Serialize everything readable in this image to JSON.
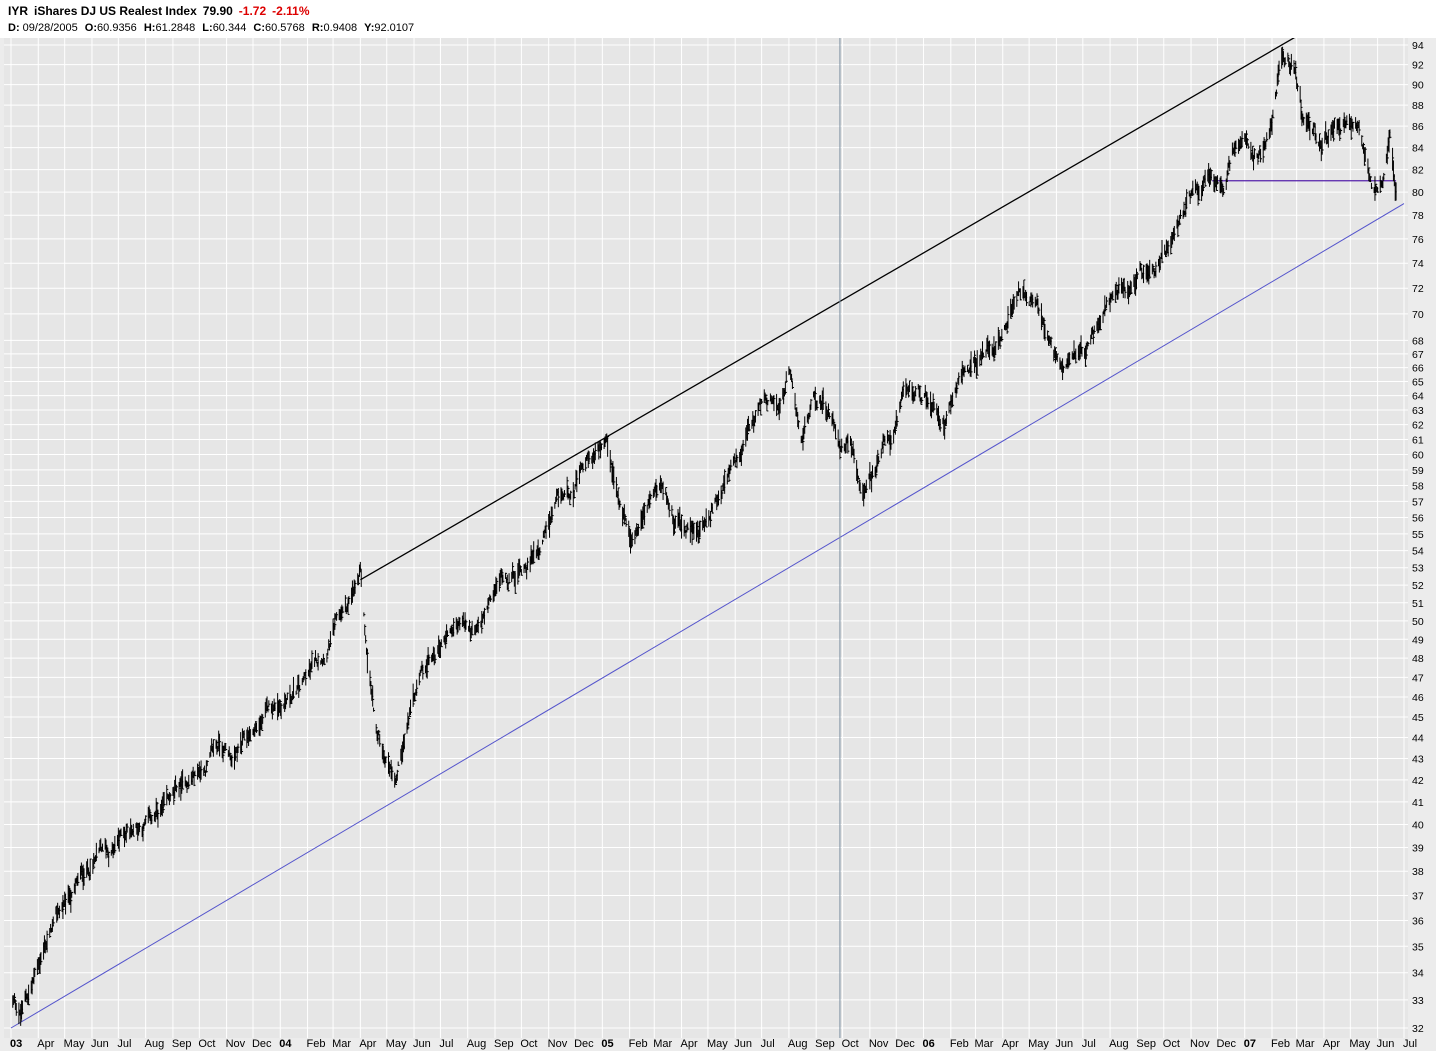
{
  "header": {
    "symbol": "IYR",
    "name": "iShares DJ US Realest Index",
    "last": "79.90",
    "change": "-1.72",
    "change_pct": "-2.11%",
    "d_label": "D:",
    "d_value": "09/28/2005",
    "o_label": "O:",
    "o_value": "60.9356",
    "h_label": "H:",
    "h_value": "61.2848",
    "l_label": "L:",
    "l_value": "60.344",
    "c_label": "C:",
    "c_value": "60.5768",
    "r_label": "R:",
    "r_value": "0.9408",
    "y_label": "Y:",
    "y_value": "92.0107"
  },
  "colors": {
    "background": "#e6e6e6",
    "grid": "#ffffff",
    "bars": "#000000",
    "upper_trendline": "#000000",
    "lower_trendline": "#5555cc",
    "support_line": "#5522aa",
    "cursor_line": "#7a8fa0",
    "negative_change": "#dd0000"
  },
  "chart_data": {
    "type": "line",
    "scale": "log",
    "grid": true,
    "ylim": [
      32,
      94
    ],
    "yticks": [
      32,
      33,
      34,
      35,
      36,
      37,
      38,
      39,
      40,
      41,
      42,
      43,
      44,
      45,
      46,
      47,
      48,
      49,
      50,
      51,
      52,
      53,
      54,
      55,
      56,
      57,
      58,
      59,
      60,
      61,
      62,
      63,
      64,
      65,
      66,
      67,
      68,
      70,
      72,
      74,
      76,
      78,
      80,
      82,
      84,
      86,
      88,
      90,
      92,
      94
    ],
    "xticks": [
      {
        "label": "03",
        "year": true,
        "date": "2003-03-01"
      },
      {
        "label": "Apr",
        "date": "2003-04-01"
      },
      {
        "label": "May",
        "date": "2003-05-01"
      },
      {
        "label": "Jun",
        "date": "2003-06-01"
      },
      {
        "label": "Jul",
        "date": "2003-07-01"
      },
      {
        "label": "Aug",
        "date": "2003-08-01"
      },
      {
        "label": "Sep",
        "date": "2003-09-01"
      },
      {
        "label": "Oct",
        "date": "2003-10-01"
      },
      {
        "label": "Nov",
        "date": "2003-11-01"
      },
      {
        "label": "Dec",
        "date": "2003-12-01"
      },
      {
        "label": "04",
        "year": true,
        "date": "2004-01-01"
      },
      {
        "label": "Feb",
        "date": "2004-02-01"
      },
      {
        "label": "Mar",
        "date": "2004-03-01"
      },
      {
        "label": "Apr",
        "date": "2004-04-01"
      },
      {
        "label": "May",
        "date": "2004-05-01"
      },
      {
        "label": "Jun",
        "date": "2004-06-01"
      },
      {
        "label": "Jul",
        "date": "2004-07-01"
      },
      {
        "label": "Aug",
        "date": "2004-08-01"
      },
      {
        "label": "Sep",
        "date": "2004-09-01"
      },
      {
        "label": "Oct",
        "date": "2004-10-01"
      },
      {
        "label": "Nov",
        "date": "2004-11-01"
      },
      {
        "label": "Dec",
        "date": "2004-12-01"
      },
      {
        "label": "05",
        "year": true,
        "date": "2005-01-01"
      },
      {
        "label": "Feb",
        "date": "2005-02-01"
      },
      {
        "label": "Mar",
        "date": "2005-03-01"
      },
      {
        "label": "Apr",
        "date": "2005-04-01"
      },
      {
        "label": "May",
        "date": "2005-05-01"
      },
      {
        "label": "Jun",
        "date": "2005-06-01"
      },
      {
        "label": "Jul",
        "date": "2005-07-01"
      },
      {
        "label": "Aug",
        "date": "2005-08-01"
      },
      {
        "label": "Sep",
        "date": "2005-09-01"
      },
      {
        "label": "Oct",
        "date": "2005-10-01"
      },
      {
        "label": "Nov",
        "date": "2005-11-01"
      },
      {
        "label": "Dec",
        "date": "2005-12-01"
      },
      {
        "label": "06",
        "year": true,
        "date": "2006-01-01"
      },
      {
        "label": "Feb",
        "date": "2006-02-01"
      },
      {
        "label": "Mar",
        "date": "2006-03-01"
      },
      {
        "label": "Apr",
        "date": "2006-04-01"
      },
      {
        "label": "May",
        "date": "2006-05-01"
      },
      {
        "label": "Jun",
        "date": "2006-06-01"
      },
      {
        "label": "Jul",
        "date": "2006-07-01"
      },
      {
        "label": "Aug",
        "date": "2006-08-01"
      },
      {
        "label": "Sep",
        "date": "2006-09-01"
      },
      {
        "label": "Oct",
        "date": "2006-10-01"
      },
      {
        "label": "Nov",
        "date": "2006-11-01"
      },
      {
        "label": "Dec",
        "date": "2006-12-01"
      },
      {
        "label": "07",
        "year": true,
        "date": "2007-01-01"
      },
      {
        "label": "Feb",
        "date": "2007-02-01"
      },
      {
        "label": "Mar",
        "date": "2007-03-01"
      },
      {
        "label": "Apr",
        "date": "2007-04-01"
      },
      {
        "label": "May",
        "date": "2007-05-01"
      },
      {
        "label": "Jun",
        "date": "2007-06-01"
      },
      {
        "label": "Jul",
        "date": "2007-07-01"
      }
    ],
    "series": [
      {
        "x": [
          "2003-03-01",
          "2003-03-12",
          "2003-03-25",
          "2003-04-10",
          "2003-04-25",
          "2003-05-10",
          "2003-05-25",
          "2003-06-10",
          "2003-06-25",
          "2003-07-10",
          "2003-07-25",
          "2003-08-10",
          "2003-08-25",
          "2003-09-10",
          "2003-09-25",
          "2003-10-10",
          "2003-10-25",
          "2003-11-10",
          "2003-11-25",
          "2003-12-10",
          "2003-12-25",
          "2004-01-10",
          "2004-01-25",
          "2004-02-10",
          "2004-02-25",
          "2004-03-10",
          "2004-03-25",
          "2004-04-01",
          "2004-04-08",
          "2004-04-20",
          "2004-05-01",
          "2004-05-12",
          "2004-05-25",
          "2004-06-10",
          "2004-06-25",
          "2004-07-10",
          "2004-07-25",
          "2004-08-10",
          "2004-08-25",
          "2004-09-10",
          "2004-09-25",
          "2004-10-10",
          "2004-10-25",
          "2004-11-10",
          "2004-11-25",
          "2004-12-10",
          "2004-12-25",
          "2005-01-05",
          "2005-01-20",
          "2005-02-05",
          "2005-02-20",
          "2005-03-05",
          "2005-03-20",
          "2005-04-05",
          "2005-04-20",
          "2005-05-05",
          "2005-05-20",
          "2005-06-05",
          "2005-06-20",
          "2005-07-05",
          "2005-07-20",
          "2005-08-01",
          "2005-08-15",
          "2005-08-28",
          "2005-09-10",
          "2005-09-28",
          "2005-10-10",
          "2005-10-25",
          "2005-11-10",
          "2005-11-25",
          "2005-12-10",
          "2005-12-25",
          "2006-01-10",
          "2006-01-25",
          "2006-02-10",
          "2006-02-25",
          "2006-03-10",
          "2006-03-25",
          "2006-04-10",
          "2006-04-25",
          "2006-05-10",
          "2006-05-25",
          "2006-06-05",
          "2006-06-20",
          "2006-07-05",
          "2006-07-20",
          "2006-08-05",
          "2006-08-20",
          "2006-09-05",
          "2006-09-20",
          "2006-10-05",
          "2006-10-20",
          "2006-11-05",
          "2006-11-20",
          "2006-12-05",
          "2006-12-20",
          "2007-01-05",
          "2007-01-20",
          "2007-02-01",
          "2007-02-10",
          "2007-02-25",
          "2007-03-10",
          "2007-03-25",
          "2007-04-10",
          "2007-04-25",
          "2007-05-10",
          "2007-05-25",
          "2007-06-05",
          "2007-06-15",
          "2007-06-22"
        ],
        "values": [
          33.0,
          32.5,
          33.6,
          35.2,
          36.3,
          37.0,
          38.0,
          38.6,
          38.8,
          39.8,
          40.0,
          40.3,
          40.6,
          41.5,
          42.2,
          42.8,
          43.7,
          43.0,
          43.9,
          44.7,
          45.5,
          46.0,
          46.4,
          47.7,
          48.9,
          50.2,
          51.4,
          52.2,
          48.0,
          44.0,
          43.0,
          42.5,
          45.0,
          47.0,
          48.0,
          49.6,
          50.0,
          49.0,
          50.5,
          52.5,
          52.8,
          53.5,
          54.8,
          56.2,
          57.5,
          58.8,
          59.9,
          60.0,
          56.5,
          55.0,
          56.5,
          57.8,
          56.5,
          55.0,
          55.0,
          56.5,
          58.5,
          59.5,
          61.5,
          63.0,
          63.5,
          65.5,
          61.0,
          63.5,
          63.8,
          60.6,
          61.0,
          57.3,
          59.5,
          61.0,
          63.5,
          64.0,
          63.5,
          62.5,
          66.5,
          66.5,
          67.0,
          68.0,
          70.5,
          72.0,
          70.0,
          67.0,
          66.0,
          68.0,
          67.5,
          69.0,
          71.5,
          71.5,
          73.0,
          74.0,
          75.0,
          77.0,
          79.5,
          81.0,
          79.0,
          83.5,
          83.5,
          84.0,
          87.0,
          93.0,
          92.0,
          86.0,
          84.5,
          86.0,
          86.5,
          86.0,
          81.0,
          80.5,
          86.0,
          79.9
        ]
      }
    ],
    "annotations": [
      {
        "type": "trendline",
        "name": "upper",
        "from": {
          "date": "2004-04-01",
          "value": 52.3
        },
        "to": {
          "date": "2007-03-01",
          "value": 94.9
        }
      },
      {
        "type": "trendline",
        "name": "lower",
        "from": {
          "date": "2003-03-01",
          "value": 32.0
        },
        "to": {
          "date": "2007-07-01",
          "value": 79.0
        }
      },
      {
        "type": "hline",
        "name": "support",
        "from_date": "2006-11-25",
        "to_date": "2007-06-22",
        "value": 81.0
      },
      {
        "type": "vline",
        "name": "cursor",
        "date": "2005-09-28"
      }
    ]
  }
}
